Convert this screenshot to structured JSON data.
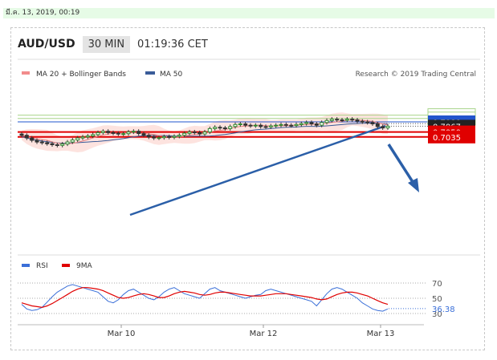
{
  "date_bar": "มี.ค. 13, 2019, 00:19",
  "header": {
    "symbol": "AUD/USD",
    "timeframe": "30 MIN",
    "time": "01:19:36 CET"
  },
  "legend": {
    "ma20": "MA 20 + Bollinger Bands",
    "ma50": "MA 50",
    "ma20_color": "#f28c8c",
    "ma50_color": "#3a5c99"
  },
  "credit": "Research © 2019 Trading Central",
  "colors": {
    "support": "#e00000",
    "resistance_green": "#a8d48a",
    "blue_level": "#2255cc",
    "arrow": "#2b5fa8",
    "candle_up": "#2e8b2e",
    "candle_down": "#333333",
    "band_fill": "#fde0dc",
    "rsi": "#3a6fd8",
    "rsi_ma": "#e00000"
  },
  "chart_data": [
    {
      "type": "candlestick",
      "symbol": "AUD/USD",
      "timeframe": "30 MIN",
      "x_ticks": [
        "Mar 10",
        "Mar 12",
        "Mar 13"
      ],
      "ylim": [
        0.7,
        0.712
      ],
      "levels": [
        {
          "value": "0.7100",
          "style": "green"
        },
        {
          "value": "0.7090",
          "style": "green"
        },
        {
          "value": "0.7080",
          "style": "blue"
        },
        {
          "value": "0.7075",
          "style": "dotted"
        },
        {
          "value": "0.7067",
          "style": "current"
        },
        {
          "value": "0.7050",
          "style": "red"
        },
        {
          "value": "0.7035",
          "style": "red"
        }
      ],
      "close_series": [
        0.704,
        0.7032,
        0.7025,
        0.702,
        0.7018,
        0.7015,
        0.7012,
        0.701,
        0.7014,
        0.702,
        0.7026,
        0.7032,
        0.7035,
        0.7038,
        0.7042,
        0.7048,
        0.7052,
        0.7048,
        0.7046,
        0.7044,
        0.7045,
        0.705,
        0.7052,
        0.7045,
        0.704,
        0.7035,
        0.7032,
        0.7033,
        0.7036,
        0.7034,
        0.7037,
        0.704,
        0.7046,
        0.705,
        0.7048,
        0.7044,
        0.705,
        0.706,
        0.7064,
        0.7062,
        0.706,
        0.7066,
        0.7072,
        0.7074,
        0.707,
        0.7068,
        0.707,
        0.7066,
        0.7065,
        0.7068,
        0.707,
        0.7072,
        0.707,
        0.7069,
        0.7072,
        0.7075,
        0.7078,
        0.7074,
        0.707,
        0.7078,
        0.7084,
        0.7088,
        0.7086,
        0.7085,
        0.7088,
        0.7086,
        0.7082,
        0.708,
        0.7078,
        0.7074,
        0.7066,
        0.7062,
        0.7067
      ],
      "trendlines": "rising support line",
      "projection": "downward arrow toward 0.7035"
    },
    {
      "type": "line",
      "title": "",
      "legend": [
        "RSI",
        "9MA"
      ],
      "y_ticks": [
        "70",
        "50",
        "30"
      ],
      "ylim": [
        25,
        80
      ],
      "current_value": "36.38",
      "rsi": [
        42,
        36,
        34,
        35,
        38,
        45,
        52,
        58,
        62,
        66,
        68,
        66,
        64,
        62,
        60,
        58,
        52,
        46,
        44,
        48,
        55,
        60,
        62,
        58,
        54,
        50,
        48,
        52,
        58,
        62,
        64,
        60,
        56,
        54,
        52,
        50,
        56,
        62,
        64,
        60,
        58,
        56,
        54,
        52,
        50,
        52,
        54,
        55,
        60,
        62,
        60,
        58,
        56,
        54,
        52,
        50,
        48,
        46,
        40,
        48,
        56,
        62,
        64,
        62,
        58,
        54,
        50,
        44,
        40,
        36,
        34,
        33,
        36
      ],
      "ma9": [
        44,
        42,
        40,
        39,
        38,
        40,
        43,
        47,
        51,
        55,
        59,
        62,
        64,
        64,
        63,
        62,
        60,
        57,
        54,
        51,
        50,
        51,
        53,
        55,
        56,
        55,
        53,
        51,
        51,
        53,
        56,
        58,
        59,
        58,
        57,
        55,
        54,
        55,
        57,
        58,
        58,
        57,
        56,
        55,
        54,
        53,
        53,
        53,
        54,
        55,
        56,
        56,
        56,
        55,
        54,
        53,
        52,
        51,
        49,
        48,
        49,
        52,
        55,
        57,
        58,
        58,
        57,
        55,
        53,
        50,
        47,
        44,
        42
      ]
    }
  ]
}
